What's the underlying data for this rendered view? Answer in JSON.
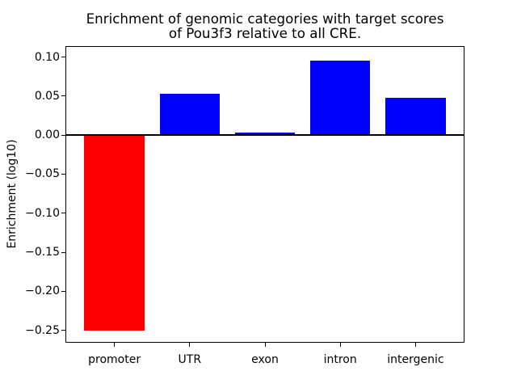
{
  "figure": {
    "background": "#ffffff",
    "axis_color": "#000000"
  },
  "chart_data": {
    "type": "bar",
    "title": "Enrichment of genomic categories with target scores\nof Pou3f3 relative to all CRE.",
    "categories": [
      "promoter",
      "UTR",
      "exon",
      "intron",
      "intergenic"
    ],
    "values": [
      -0.251,
      0.053,
      0.003,
      0.095,
      0.048
    ],
    "bar_colors": [
      "#ff0000",
      "#0000ff",
      "#0000ff",
      "#0000ff",
      "#0000ff"
    ],
    "xlabel": "",
    "ylabel": "Enrichment (log10)",
    "yticks": [
      0.1,
      0.05,
      0.0,
      -0.05,
      -0.1,
      -0.15,
      -0.2,
      -0.25
    ],
    "ytick_labels": [
      "0.10",
      "0.05",
      "0.00",
      "−0.05",
      "−0.10",
      "−0.15",
      "−0.20",
      "−0.25"
    ],
    "ylim": [
      -0.265,
      0.113
    ],
    "xlim": [
      -0.64,
      4.64
    ],
    "bar_width": 0.8,
    "zero_line": true,
    "grid": false,
    "legend": null
  }
}
